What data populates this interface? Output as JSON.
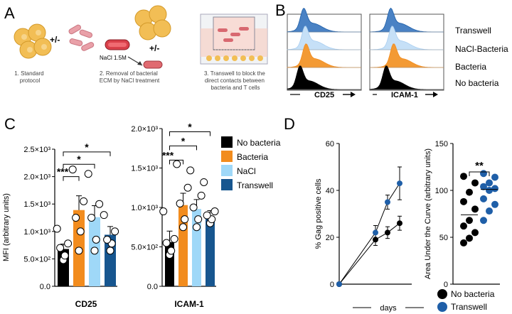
{
  "panel_letters": [
    "A",
    "B",
    "C",
    "D"
  ],
  "panel_a": {
    "step1_caption": [
      "1. Standard",
      "protocol"
    ],
    "step2_caption": [
      "2. Removal of bacterial",
      "ECM by NaCl treatment"
    ],
    "step3_caption": [
      "3. Transwell to block the",
      "direct contacts between",
      "bacteria and T cells"
    ],
    "plus_minus_1": "+/-",
    "plus_minus_2": "+/-",
    "nacl_label": "NaCl 1.5M"
  },
  "panel_b": {
    "legend": [
      "Transwell",
      "NaCl-Bacteria",
      "Bacteria",
      "No bacteria"
    ],
    "axis_labels": [
      "CD25",
      "ICAM-1"
    ],
    "colors": {
      "transwell": "#1f5fa8",
      "nacl": "#a8cdf0",
      "bacteria": "#f28c1e",
      "no_bacteria": "#000000"
    }
  },
  "chart_data": [
    {
      "type": "bar",
      "title": "CD25",
      "ylabel": "MFI (arbitrary units)",
      "yticks": [
        "0.0",
        "5.0×10²",
        "1.0×10³",
        "1.5×10³",
        "2.0×10³",
        "2.5×10³"
      ],
      "ylim": [
        0,
        2500
      ],
      "categories": [
        "No bacteria",
        "Bacteria",
        "NaCl",
        "Transwell"
      ],
      "values": [
        680,
        1390,
        1260,
        940
      ],
      "errors": [
        90,
        260,
        210,
        150
      ],
      "points": [
        [
          480,
          560,
          700,
          780,
          1050
        ],
        [
          650,
          1000,
          1250,
          1550,
          2130
        ],
        [
          650,
          850,
          1250,
          1500,
          2050
        ],
        [
          650,
          780,
          850,
          1000,
          1300
        ]
      ],
      "significance": [
        {
          "pair": "No bacteria-Bacteria",
          "label": "***"
        },
        {
          "pair": "No bacteria-NaCl",
          "label": "*"
        },
        {
          "pair": "No bacteria-Transwell",
          "label": "*"
        }
      ]
    },
    {
      "type": "bar",
      "title": "ICAM-1",
      "yticks": [
        "0.0",
        "5.0×10²",
        "1.0×10³",
        "1.5×10³",
        "2.0×10³"
      ],
      "ylim": [
        0,
        2000
      ],
      "categories": [
        "No bacteria",
        "Bacteria",
        "NaCl",
        "Transwell"
      ],
      "values": [
        560,
        1030,
        980,
        860
      ],
      "errors": [
        140,
        150,
        120,
        100
      ],
      "points": [
        [
          400,
          450,
          550,
          600,
          950
        ],
        [
          750,
          850,
          1050,
          1250,
          1550
        ],
        [
          750,
          850,
          1000,
          1150,
          1470
        ],
        [
          800,
          850,
          900,
          950,
          1320
        ]
      ],
      "significance": [
        {
          "pair": "No bacteria-Bacteria",
          "label": "***"
        },
        {
          "pair": "No bacteria-NaCl",
          "label": "*"
        },
        {
          "pair": "No bacteria-Transwell",
          "label": "*"
        }
      ]
    },
    {
      "type": "line",
      "ylabel": "% Gag positive cells",
      "xlabel": "days",
      "yticks": [
        "0",
        "20",
        "40",
        "60"
      ],
      "ylim": [
        0,
        60
      ],
      "xlim": [
        0,
        6
      ],
      "series": [
        {
          "name": "No bacteria",
          "x": [
            0,
            3,
            4,
            5
          ],
          "y": [
            0,
            19,
            22,
            26
          ],
          "err": [
            0,
            2.5,
            2.5,
            3
          ]
        },
        {
          "name": "Transwell",
          "x": [
            0,
            3,
            4,
            5
          ],
          "y": [
            0,
            22,
            35,
            43
          ],
          "err": [
            0,
            3,
            3,
            7
          ]
        }
      ]
    },
    {
      "type": "scatter",
      "ylabel": "Area Under the Curve (arbitrary units)",
      "yticks": [
        "0",
        "50",
        "100",
        "150"
      ],
      "ylim": [
        0,
        150
      ],
      "categories": [
        "No bacteria",
        "Transwell"
      ],
      "medians": [
        74,
        101
      ],
      "points": [
        [
          44,
          49,
          55,
          62,
          68,
          80,
          88,
          98,
          108,
          115
        ],
        [
          68,
          78,
          85,
          91,
          100,
          102,
          104,
          108,
          114,
          118
        ]
      ],
      "significance": {
        "label": "**"
      }
    }
  ],
  "panel_c_legend": [
    "No bacteria",
    "Bacteria",
    "NaCl",
    "Transwell"
  ],
  "panel_d_legend": [
    "No bacteria",
    "Transwell"
  ],
  "colors": {
    "no_bacteria": "#000000",
    "bacteria": "#f28c1e",
    "nacl": "#9fd8f8",
    "transwell": "#17568f",
    "line_blue": "#1f5fa8"
  }
}
